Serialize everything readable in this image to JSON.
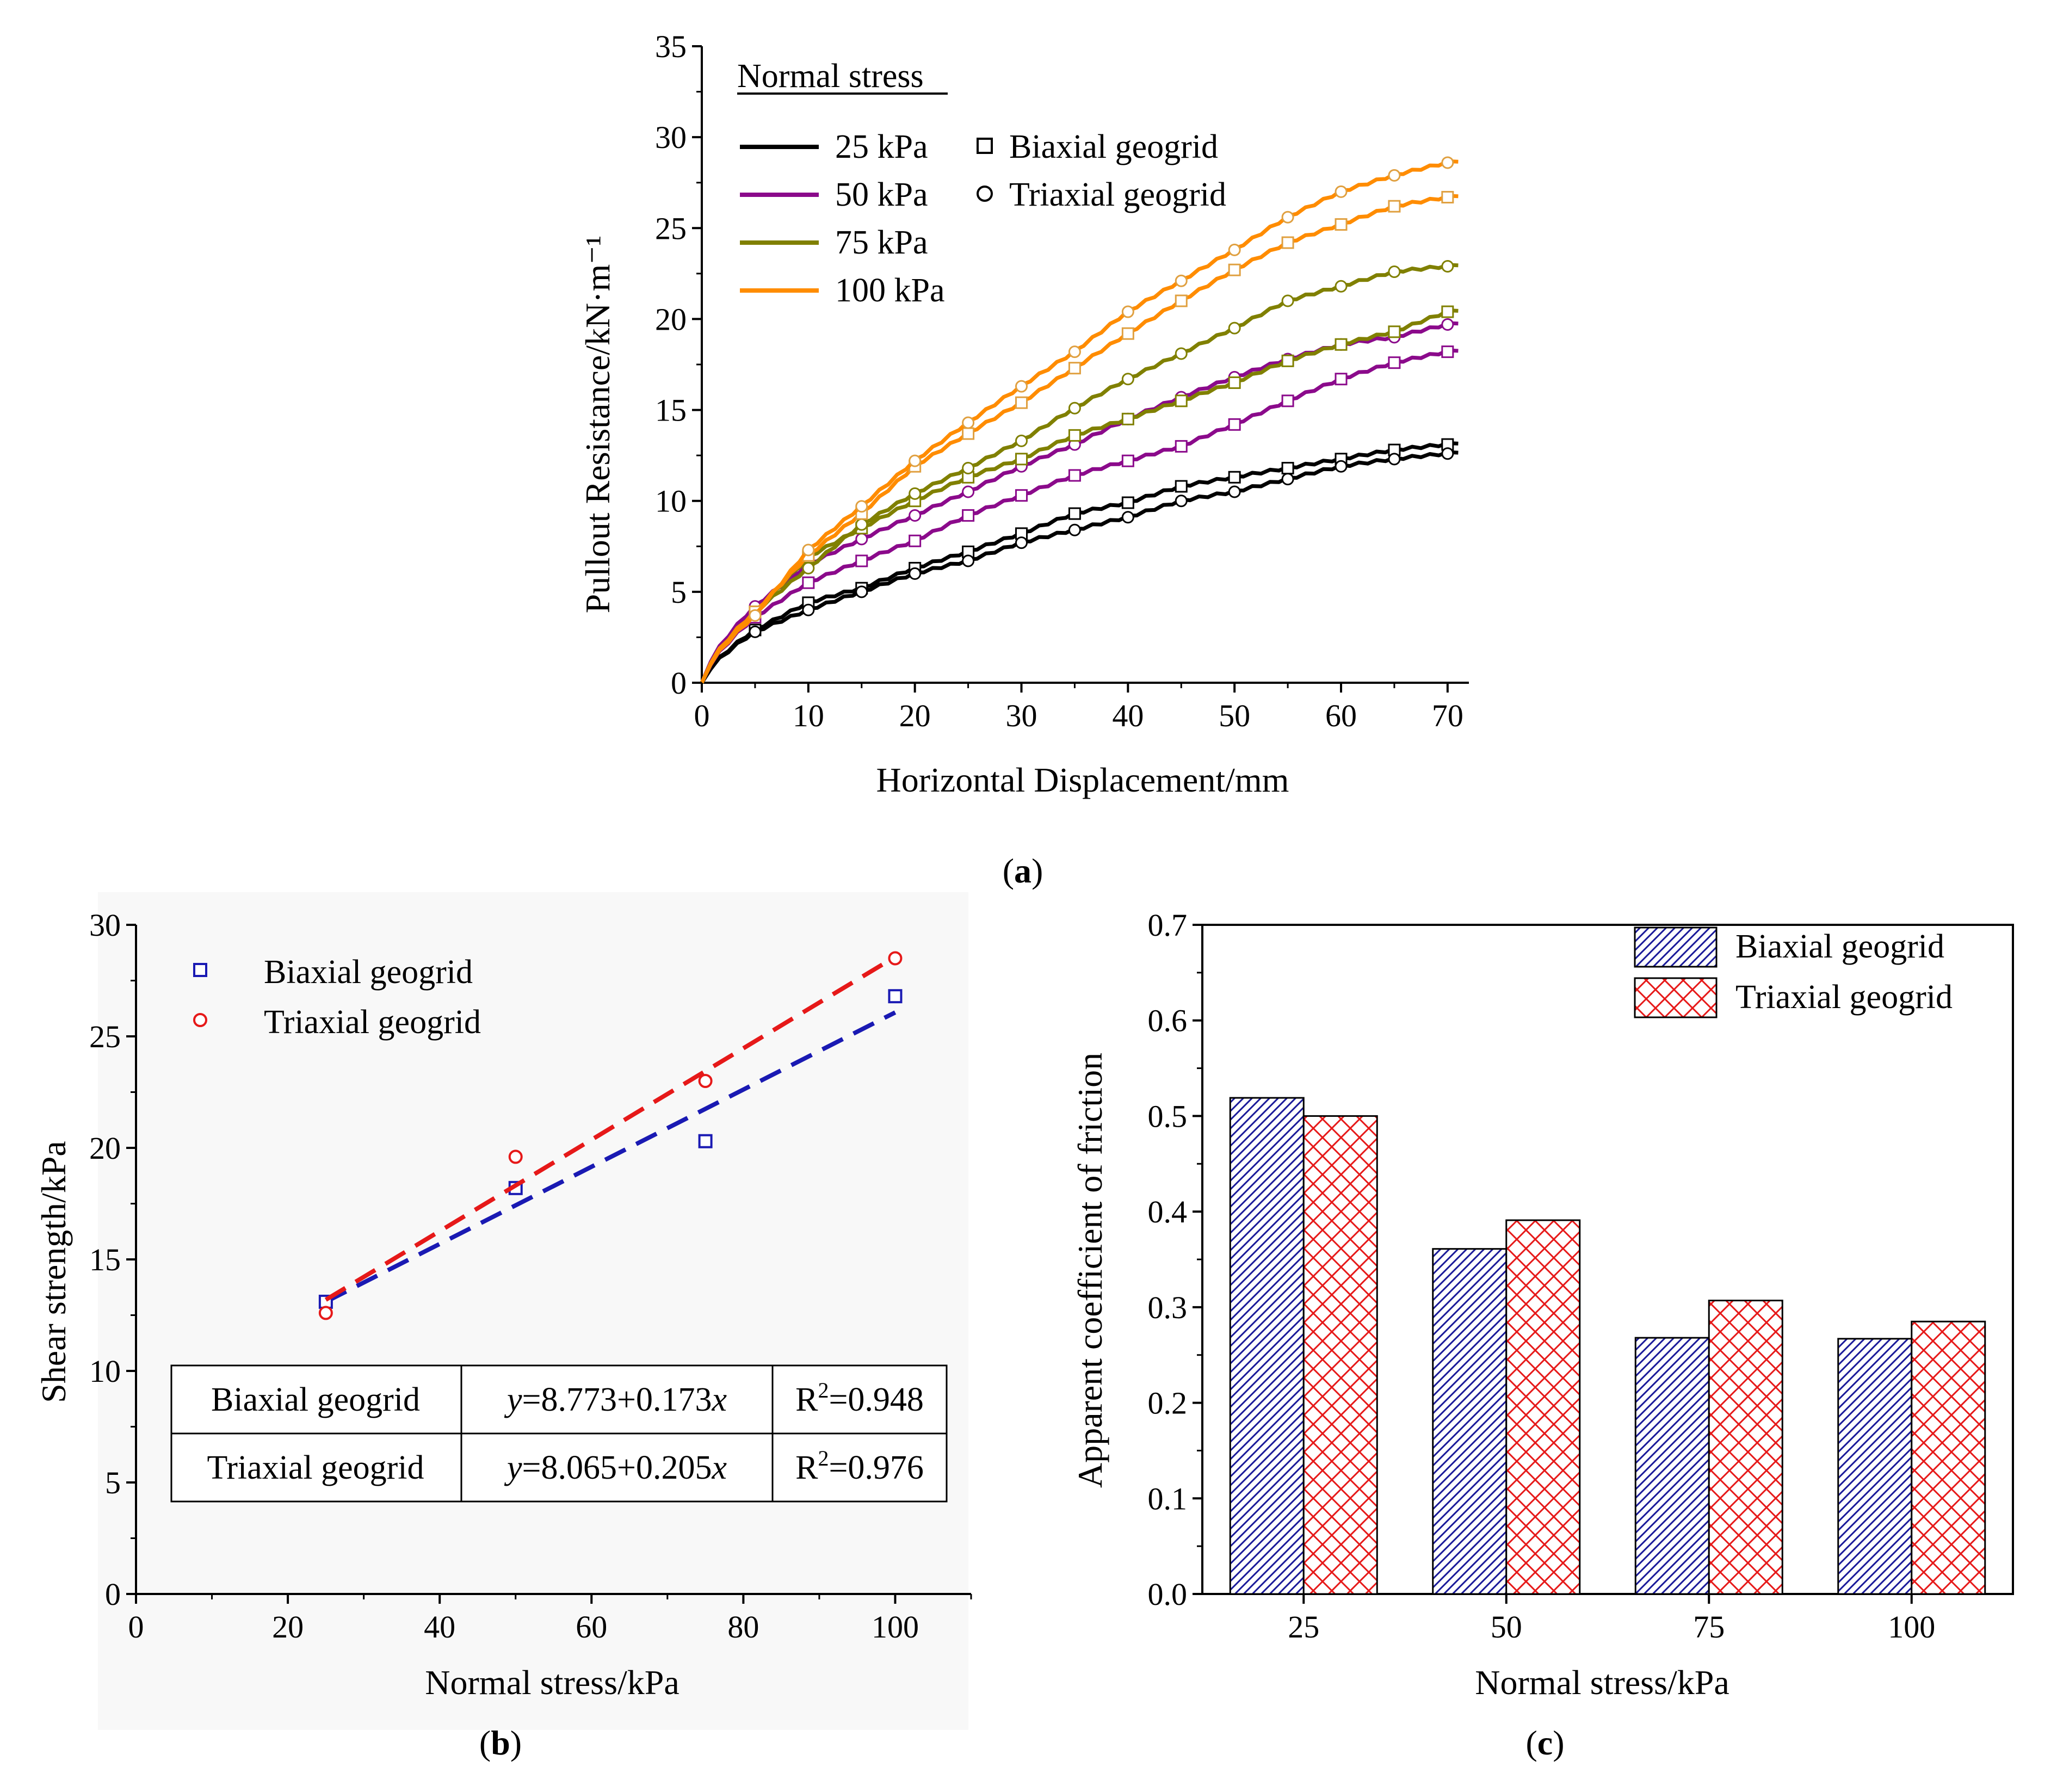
{
  "chart_data": [
    {
      "panel": "(a)",
      "type": "line",
      "xlabel": "Horizontal Displacement/mm",
      "ylabel": "Pullout Resistance/kN·m⁻¹",
      "xlim": [
        0,
        72
      ],
      "ylim": [
        0,
        35
      ],
      "xticks": [
        "0",
        "10",
        "20",
        "30",
        "40",
        "50",
        "60",
        "70"
      ],
      "yticks": [
        "0",
        "5",
        "10",
        "15",
        "20",
        "25",
        "30",
        "35"
      ],
      "legend_title": "Normal stress",
      "legend_entries": [
        {
          "label": "25 kPa",
          "color": "#000000"
        },
        {
          "label": "50 kPa",
          "color": "#8B0A8B"
        },
        {
          "label": "75 kPa",
          "color": "#808000"
        },
        {
          "label": "100 kPa",
          "color": "#FF8C00"
        }
      ],
      "marker_legend": [
        {
          "label": "Biaxial geogrid",
          "marker": "square"
        },
        {
          "label": "Triaxial geogrid",
          "marker": "circle"
        }
      ],
      "x": [
        0,
        5,
        10,
        15,
        20,
        25,
        30,
        35,
        40,
        45,
        50,
        55,
        60,
        65,
        70
      ],
      "series": [
        {
          "name": "25 kPa Biaxial",
          "stress": "25 kPa",
          "geogrid": "Biaxial",
          "color": "#000000",
          "marker": "square",
          "values": [
            0,
            2.9,
            4.4,
            5.2,
            6.3,
            7.2,
            8.2,
            9.3,
            9.9,
            10.8,
            11.3,
            11.8,
            12.3,
            12.8,
            13.1
          ]
        },
        {
          "name": "25 kPa Triaxial",
          "stress": "25 kPa",
          "geogrid": "Triaxial",
          "color": "#000000",
          "marker": "circle",
          "values": [
            0,
            2.8,
            4.0,
            5.0,
            6.0,
            6.7,
            7.7,
            8.4,
            9.1,
            10.0,
            10.5,
            11.2,
            11.9,
            12.3,
            12.6
          ]
        },
        {
          "name": "50 kPa Biaxial",
          "stress": "50 kPa",
          "geogrid": "Biaxial",
          "color": "#8B0A8B",
          "marker": "square",
          "values": [
            0,
            3.6,
            5.5,
            6.7,
            7.8,
            9.2,
            10.3,
            11.4,
            12.2,
            13.0,
            14.2,
            15.5,
            16.7,
            17.6,
            18.2
          ]
        },
        {
          "name": "50 kPa Triaxial",
          "stress": "50 kPa",
          "geogrid": "Triaxial",
          "color": "#8B0A8B",
          "marker": "circle",
          "values": [
            0,
            4.2,
            6.5,
            7.9,
            9.2,
            10.5,
            11.9,
            13.1,
            14.5,
            15.7,
            16.8,
            17.8,
            18.6,
            19.0,
            19.7
          ]
        },
        {
          "name": "75 kPa Biaxial",
          "stress": "75 kPa",
          "geogrid": "Biaxial",
          "color": "#808000",
          "marker": "square",
          "values": [
            0,
            3.9,
            6.9,
            8.5,
            10.0,
            11.3,
            12.3,
            13.6,
            14.5,
            15.5,
            16.5,
            17.7,
            18.6,
            19.3,
            20.4
          ]
        },
        {
          "name": "75 kPa Triaxial",
          "stress": "75 kPa",
          "geogrid": "Triaxial",
          "color": "#808000",
          "marker": "circle",
          "values": [
            0,
            3.9,
            6.3,
            8.7,
            10.4,
            11.8,
            13.3,
            15.1,
            16.7,
            18.1,
            19.5,
            21.0,
            21.8,
            22.6,
            22.9
          ]
        },
        {
          "name": "100 kPa Biaxial",
          "stress": "100 kPa",
          "geogrid": "Biaxial",
          "color": "#FF8C00",
          "marker": "square",
          "values": [
            0,
            3.9,
            7.0,
            9.3,
            11.9,
            13.7,
            15.4,
            17.3,
            19.2,
            21.0,
            22.7,
            24.2,
            25.2,
            26.2,
            26.7
          ]
        },
        {
          "name": "100 kPa Triaxial",
          "stress": "100 kPa",
          "geogrid": "Triaxial",
          "color": "#FF8C00",
          "marker": "circle",
          "values": [
            0,
            3.7,
            7.3,
            9.7,
            12.2,
            14.3,
            16.3,
            18.2,
            20.4,
            22.1,
            23.8,
            25.6,
            27.0,
            27.9,
            28.6
          ]
        }
      ]
    },
    {
      "panel": "(b)",
      "type": "scatter",
      "xlabel": "Normal stress/kPa",
      "ylabel": "Shear strength/kPa",
      "xlim": [
        0,
        110
      ],
      "ylim": [
        0,
        30
      ],
      "xticks": [
        "0",
        "20",
        "40",
        "60",
        "80",
        "100"
      ],
      "yticks": [
        "0",
        "5",
        "10",
        "15",
        "20",
        "25",
        "30"
      ],
      "legend_entries": [
        {
          "label": "Biaxial geogrid",
          "marker": "square",
          "color": "#1A1AB3"
        },
        {
          "label": "Triaxial geogrid",
          "marker": "circle",
          "color": "#E61919"
        }
      ],
      "series": [
        {
          "name": "Biaxial geogrid",
          "color": "#1A1AB3",
          "marker": "square",
          "x": [
            25,
            50,
            75,
            100
          ],
          "y": [
            13.1,
            18.2,
            20.3,
            26.8
          ],
          "fit": {
            "intercept": 8.773,
            "slope": 0.173,
            "x_range": [
              25,
              100
            ]
          }
        },
        {
          "name": "Triaxial geogrid",
          "color": "#E61919",
          "marker": "circle",
          "x": [
            25,
            50,
            75,
            100
          ],
          "y": [
            12.6,
            19.6,
            23.0,
            28.5
          ],
          "fit": {
            "intercept": 8.065,
            "slope": 0.205,
            "x_range": [
              25,
              100
            ]
          }
        }
      ],
      "fit_table": [
        {
          "name": "Biaxial geogrid",
          "eq_y": "y",
          "eq_rest": "=8.773+0.173",
          "eq_x": "x",
          "r2_prefix": "R",
          "r2_sup": "2",
          "r2_value": "=0.948",
          "color": "#1A1AB3"
        },
        {
          "name": "Triaxial geogrid",
          "eq_y": "y",
          "eq_rest": "=8.065+0.205",
          "eq_x": "x",
          "r2_prefix": "R",
          "r2_sup": "2",
          "r2_value": "=0.976",
          "color": "#E61919"
        }
      ]
    },
    {
      "panel": "(c)",
      "type": "bar",
      "xlabel": "Normal stress/kPa",
      "ylabel": "Apparent coefficient of friction",
      "categories": [
        "25",
        "50",
        "75",
        "100"
      ],
      "ylim": [
        0,
        0.7
      ],
      "yticks": [
        "0.0",
        "0.1",
        "0.2",
        "0.3",
        "0.4",
        "0.5",
        "0.6",
        "0.7"
      ],
      "series": [
        {
          "name": "Biaxial geogrid",
          "values": [
            0.519,
            0.361,
            0.268,
            0.267
          ],
          "color": "#1A1A99",
          "pattern": "diagonal-hatch"
        },
        {
          "name": "Triaxial geogrid",
          "values": [
            0.5,
            0.391,
            0.307,
            0.285
          ],
          "color": "#E61919",
          "pattern": "cross-hatch"
        }
      ]
    }
  ]
}
